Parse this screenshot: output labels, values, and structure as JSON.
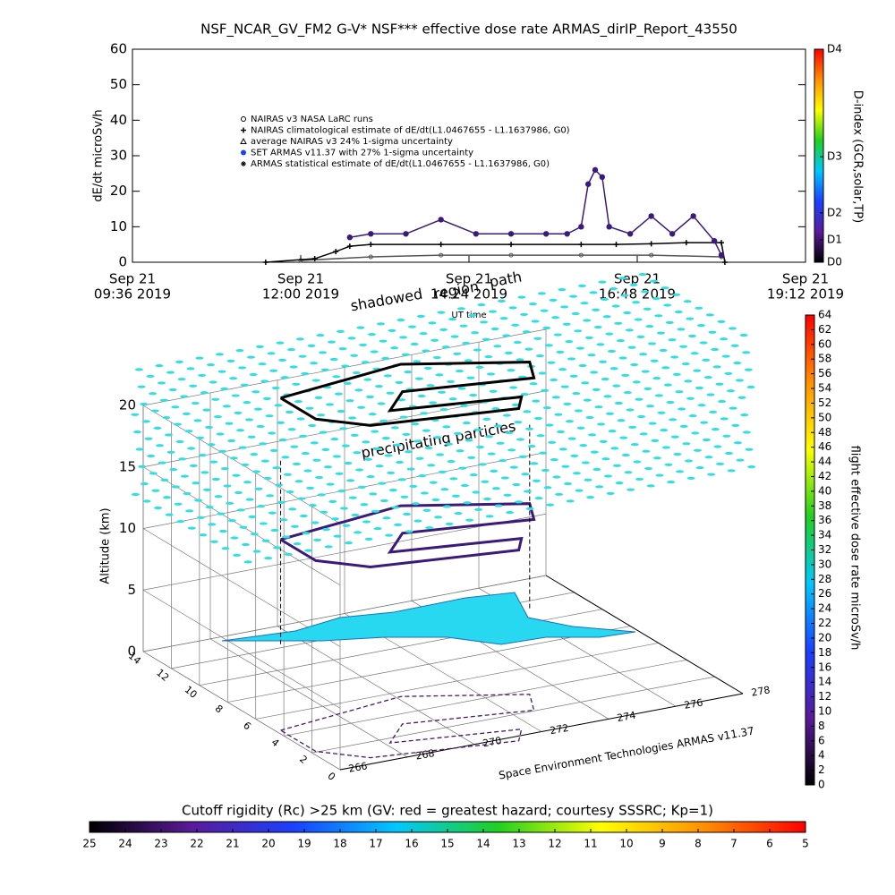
{
  "chart_data": [
    {
      "type": "line",
      "title": "NSF_NCAR_GV_FM2 G-V* NSF*** effective dose rate ARMAS_dirIP_Report_43550",
      "y_label": "dE/dt microSv/h",
      "x_label": "UT time",
      "xlim": [
        9.6,
        19.2
      ],
      "xticks": [
        {
          "value": 9.6,
          "label": [
            "Sep 21",
            "09:36 2019"
          ]
        },
        {
          "value": 12.0,
          "label": [
            "Sep 21",
            "12:00 2019"
          ]
        },
        {
          "value": 14.4,
          "label": [
            "Sep 21",
            "14:24 2019"
          ]
        },
        {
          "value": 16.8,
          "label": [
            "Sep 21",
            "16:48 2019"
          ]
        },
        {
          "value": 19.2,
          "label": [
            "Sep 21",
            "19:12 2019"
          ]
        }
      ],
      "ylim": [
        0,
        60
      ],
      "yticks": [
        0,
        10,
        20,
        30,
        40,
        50,
        60
      ],
      "legend": [
        "NAIRAS v3 NASA LaRC runs",
        "NAIRAS climatological estimate of dE/dt(L1.0467655 - L1.1637986, G0)",
        "average NAIRAS v3 24% 1-sigma uncertainty",
        "SET ARMAS v11.37 with 27% 1-sigma uncertainty",
        "ARMAS statistical estimate of dE/dt(L1.0467655 - L1.1637986, G0)"
      ],
      "series": [
        {
          "name": "NAIRAS climatological estimate",
          "color": "#000000",
          "x": [
            11.5,
            12.2,
            12.5,
            12.7,
            13.0,
            14.0,
            15.0,
            16.0,
            16.5,
            17.0,
            17.5,
            18.0,
            18.05
          ],
          "values": [
            0,
            1,
            3,
            4.5,
            5,
            5,
            5,
            5,
            5,
            5.2,
            5.5,
            5.5,
            0
          ]
        },
        {
          "name": "SET ARMAS v11.37",
          "color": "#3a1a7a",
          "x": [
            12.7,
            13.0,
            13.5,
            14.0,
            14.5,
            15.0,
            15.5,
            15.8,
            16.0,
            16.1,
            16.2,
            16.3,
            16.4,
            16.7,
            17.0,
            17.3,
            17.6,
            17.9,
            18.0
          ],
          "values": [
            7,
            8,
            8,
            12,
            8,
            8,
            8,
            8,
            10,
            22,
            26,
            24,
            10,
            8,
            13,
            8,
            13,
            6,
            2
          ]
        },
        {
          "name": "NAIRAS v3 NASA LaRC runs",
          "color": "#555555",
          "x": [
            12.0,
            13.0,
            14.0,
            15.0,
            16.0,
            17.0,
            18.0
          ],
          "values": [
            0.5,
            1.5,
            2,
            2,
            2,
            2,
            1.5
          ]
        }
      ],
      "colorbar": {
        "label": "D-index (GCR,solar,TP)",
        "colors": [
          "#000000",
          "#5a1a9a",
          "#1a40ff",
          "#00c8ff",
          "#20d020",
          "#ffff00",
          "#ff9000",
          "#ff0000"
        ],
        "ticks": [
          {
            "value": 0,
            "label": "D0"
          },
          {
            "value": 6.3,
            "label": "D1"
          },
          {
            "value": 13.9,
            "label": "D2"
          },
          {
            "value": 29.7,
            "label": "D3"
          },
          {
            "value": 60,
            "label": "D4"
          }
        ]
      }
    },
    {
      "type": "surface3d",
      "z_label": "Altitude (km)",
      "zlim": [
        0,
        20
      ],
      "zticks": [
        0,
        5,
        10,
        15,
        20
      ],
      "xlim": [
        266,
        278
      ],
      "xticks": [
        266,
        268,
        270,
        272,
        274,
        276,
        278
      ],
      "ylim": [
        0,
        14
      ],
      "yticks": [
        0,
        2,
        4,
        6,
        8,
        10,
        12,
        14
      ],
      "annotations": [
        "shadowed",
        "region",
        "path",
        "precipitating particles"
      ],
      "credit": "Space Environment Technologies ARMAS v11.37",
      "dose_colorbar": {
        "label": "flight effective dose rate microSv/h",
        "lim": [
          0,
          64
        ],
        "ticks": [
          0,
          2,
          4,
          6,
          8,
          10,
          12,
          14,
          16,
          18,
          20,
          22,
          24,
          26,
          28,
          30,
          32,
          34,
          36,
          38,
          40,
          42,
          44,
          46,
          48,
          50,
          52,
          54,
          56,
          58,
          60,
          62,
          64
        ],
        "colors": [
          "#000000",
          "#5a1a9a",
          "#1a40ff",
          "#00c8ff",
          "#20d020",
          "#ffff00",
          "#ff9000",
          "#ff0000"
        ]
      },
      "rigidity_colorbar": {
        "label": "Cutoff rigidity (Rc) >25 km (GV: red = greatest hazard; courtesy SSSRC; Kp=1)",
        "lim": [
          25,
          5
        ],
        "ticks": [
          25,
          24,
          23,
          22,
          21,
          20,
          19,
          18,
          17,
          16,
          15,
          14,
          13,
          12,
          11,
          10,
          9,
          8,
          7,
          6,
          5
        ],
        "colors": [
          "#000000",
          "#5a1a9a",
          "#1a40ff",
          "#00c8ff",
          "#20d020",
          "#ffff00",
          "#ff9000",
          "#ff0000"
        ]
      }
    }
  ]
}
